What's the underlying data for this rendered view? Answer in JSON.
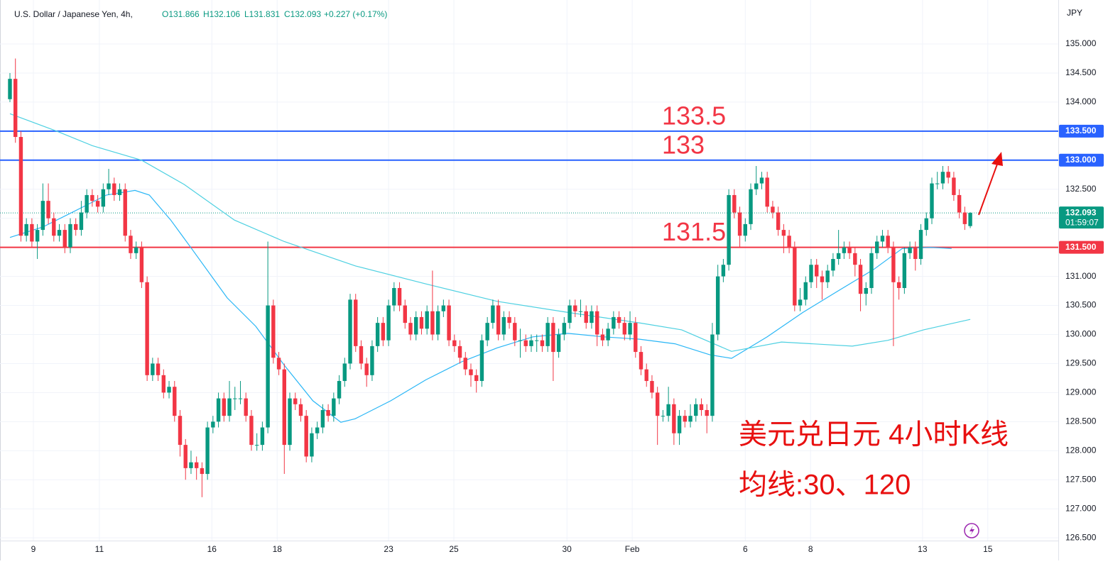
{
  "chart_data": {
    "type": "candlestick",
    "title": "U.S. Dollar / Japanese Yen, 4h,",
    "header": {
      "open": "O131.866",
      "high": "H132.106",
      "low": "L131.831",
      "close": "C132.093",
      "change": "+0.227 (+0.17%)"
    },
    "currency": "JPY",
    "up_color": "#089981",
    "down_color": "#f23645",
    "ylim": [
      126.453,
      135.757
    ],
    "yticks": [
      {
        "value": 126.5,
        "label": "126.500"
      },
      {
        "value": 127,
        "label": "127.000"
      },
      {
        "value": 127.5,
        "label": "127.500"
      },
      {
        "value": 128,
        "label": "128.000"
      },
      {
        "value": 128.5,
        "label": "128.500"
      },
      {
        "value": 129,
        "label": "129.000"
      },
      {
        "value": 129.5,
        "label": "129.500"
      },
      {
        "value": 130,
        "label": "130.000"
      },
      {
        "value": 130.5,
        "label": "130.500"
      },
      {
        "value": 131,
        "label": "131.000"
      },
      {
        "value": 131.5,
        "label": "131.500"
      },
      {
        "value": 132,
        "label": "132.000"
      },
      {
        "value": 132.5,
        "label": "132.500"
      },
      {
        "value": 133,
        "label": "133.000"
      },
      {
        "value": 133.5,
        "label": "133.500"
      },
      {
        "value": 134,
        "label": "134.000"
      },
      {
        "value": 134.5,
        "label": "134.500"
      },
      {
        "value": 135,
        "label": "135.000"
      }
    ],
    "xlim": [
      -1.81,
      191.04
    ],
    "xticks": [
      {
        "value": 4.27,
        "label": "9"
      },
      {
        "value": 16.3,
        "label": "11"
      },
      {
        "value": 36.8,
        "label": "16"
      },
      {
        "value": 48.7,
        "label": "18"
      },
      {
        "value": 69,
        "label": "23"
      },
      {
        "value": 80.9,
        "label": "25"
      },
      {
        "value": 101.5,
        "label": "30"
      },
      {
        "value": 113.4,
        "label": "Feb"
      },
      {
        "value": 134,
        "label": "6"
      },
      {
        "value": 145.9,
        "label": "8"
      },
      {
        "value": 166.3,
        "label": "13"
      },
      {
        "value": 178.2,
        "label": "15"
      }
    ],
    "grid": true,
    "ohlc": [
      [
        134.05,
        134.5,
        134.0,
        134.4
      ],
      [
        134.4,
        134.75,
        133.3,
        133.4
      ],
      [
        133.4,
        133.5,
        131.6,
        131.7
      ],
      [
        131.7,
        132.0,
        131.6,
        131.9
      ],
      [
        131.9,
        132.0,
        131.5,
        131.6
      ],
      [
        131.6,
        131.9,
        131.3,
        131.8
      ],
      [
        131.8,
        132.6,
        131.7,
        132.3
      ],
      [
        132.3,
        132.6,
        131.9,
        132.0
      ],
      [
        132.0,
        132.1,
        131.6,
        131.7
      ],
      [
        131.7,
        131.9,
        131.6,
        131.8
      ],
      [
        131.8,
        131.9,
        131.4,
        131.5
      ],
      [
        131.5,
        132.0,
        131.4,
        131.9
      ],
      [
        131.9,
        132.0,
        131.7,
        131.8
      ],
      [
        131.8,
        132.3,
        131.7,
        132.1
      ],
      [
        132.1,
        132.5,
        132.0,
        132.4
      ],
      [
        132.4,
        132.5,
        132.2,
        132.3
      ],
      [
        132.3,
        132.4,
        132.1,
        132.2
      ],
      [
        132.2,
        132.6,
        132.1,
        132.5
      ],
      [
        132.5,
        132.85,
        132.4,
        132.6
      ],
      [
        132.6,
        132.7,
        132.3,
        132.4
      ],
      [
        132.4,
        132.6,
        132.3,
        132.5
      ],
      [
        132.5,
        132.6,
        131.6,
        131.7
      ],
      [
        131.7,
        131.8,
        131.3,
        131.4
      ],
      [
        131.4,
        131.6,
        131.3,
        131.5
      ],
      [
        131.5,
        131.6,
        130.8,
        130.9
      ],
      [
        130.9,
        131.0,
        129.2,
        129.3
      ],
      [
        129.3,
        129.6,
        129.2,
        129.5
      ],
      [
        129.5,
        129.6,
        129.2,
        129.3
      ],
      [
        129.3,
        129.4,
        128.9,
        129.0
      ],
      [
        129.0,
        129.2,
        128.9,
        129.1
      ],
      [
        129.1,
        129.2,
        128.5,
        128.6
      ],
      [
        128.6,
        128.7,
        127.9,
        128.1
      ],
      [
        128.1,
        128.2,
        127.5,
        127.7
      ],
      [
        127.7,
        128.0,
        127.6,
        127.8
      ],
      [
        127.8,
        127.9,
        127.5,
        127.7
      ],
      [
        127.7,
        127.8,
        127.2,
        127.6
      ],
      [
        127.6,
        128.5,
        127.5,
        128.4
      ],
      [
        128.4,
        128.6,
        128.3,
        128.5
      ],
      [
        128.5,
        129.0,
        128.4,
        128.9
      ],
      [
        128.9,
        129.0,
        128.5,
        128.6
      ],
      [
        128.6,
        129.2,
        128.5,
        128.9
      ],
      [
        128.9,
        129.1,
        128.7,
        128.9
      ],
      [
        128.9,
        129.2,
        128.8,
        128.9
      ],
      [
        128.9,
        129.0,
        128.5,
        128.6
      ],
      [
        128.6,
        128.7,
        128.0,
        128.1
      ],
      [
        128.1,
        128.3,
        128.0,
        128.1
      ],
      [
        128.1,
        128.5,
        128.0,
        128.4
      ],
      [
        128.4,
        131.6,
        128.3,
        130.5
      ],
      [
        130.5,
        130.6,
        129.5,
        129.6
      ],
      [
        129.6,
        129.7,
        129.3,
        129.4
      ],
      [
        129.4,
        129.5,
        127.6,
        128.1
      ],
      [
        128.1,
        129.0,
        128.0,
        128.9
      ],
      [
        128.9,
        129.0,
        128.7,
        128.8
      ],
      [
        128.8,
        128.9,
        128.5,
        128.6
      ],
      [
        128.6,
        128.7,
        127.8,
        127.9
      ],
      [
        127.9,
        128.4,
        127.8,
        128.3
      ],
      [
        128.3,
        128.5,
        128.2,
        128.4
      ],
      [
        128.4,
        128.8,
        128.3,
        128.7
      ],
      [
        128.7,
        128.8,
        128.5,
        128.6
      ],
      [
        128.6,
        129.0,
        128.5,
        128.9
      ],
      [
        128.9,
        129.3,
        128.8,
        129.2
      ],
      [
        129.2,
        129.6,
        129.1,
        129.5
      ],
      [
        129.5,
        130.7,
        129.4,
        130.6
      ],
      [
        130.6,
        130.7,
        129.7,
        129.8
      ],
      [
        129.8,
        129.9,
        129.4,
        129.5
      ],
      [
        129.5,
        129.6,
        129.1,
        129.3
      ],
      [
        129.3,
        129.9,
        129.2,
        129.8
      ],
      [
        129.8,
        130.3,
        129.7,
        130.2
      ],
      [
        130.2,
        130.3,
        129.8,
        129.9
      ],
      [
        129.9,
        130.6,
        129.8,
        130.5
      ],
      [
        130.5,
        130.9,
        130.4,
        130.8
      ],
      [
        130.8,
        130.9,
        130.4,
        130.5
      ],
      [
        130.5,
        130.6,
        130.1,
        130.2
      ],
      [
        130.2,
        130.3,
        129.9,
        130.0
      ],
      [
        130.0,
        130.4,
        129.9,
        130.3
      ],
      [
        130.3,
        130.4,
        130.0,
        130.1
      ],
      [
        130.1,
        130.5,
        130.0,
        130.4
      ],
      [
        130.4,
        131.1,
        129.9,
        130.0
      ],
      [
        130.0,
        130.5,
        129.9,
        130.4
      ],
      [
        130.4,
        130.6,
        130.3,
        130.5
      ],
      [
        130.5,
        130.6,
        129.8,
        129.9
      ],
      [
        129.9,
        130.0,
        129.7,
        129.8
      ],
      [
        129.8,
        129.9,
        129.5,
        129.6
      ],
      [
        129.6,
        129.7,
        129.3,
        129.4
      ],
      [
        129.4,
        129.5,
        129.1,
        129.3
      ],
      [
        129.3,
        129.4,
        129.0,
        129.2
      ],
      [
        129.2,
        130.0,
        129.1,
        129.9
      ],
      [
        129.9,
        130.3,
        129.8,
        130.2
      ],
      [
        130.2,
        130.6,
        130.1,
        130.5
      ],
      [
        130.5,
        130.6,
        129.9,
        130.0
      ],
      [
        130.0,
        130.4,
        129.9,
        130.3
      ],
      [
        130.3,
        130.4,
        130.1,
        130.2
      ],
      [
        130.2,
        130.3,
        129.8,
        129.9
      ],
      [
        129.9,
        130.1,
        129.6,
        129.9
      ],
      [
        129.9,
        130.0,
        129.7,
        129.8
      ],
      [
        129.8,
        130.0,
        129.7,
        129.9
      ],
      [
        129.9,
        130.0,
        129.7,
        129.9
      ],
      [
        129.9,
        130.0,
        129.7,
        129.8
      ],
      [
        129.8,
        130.3,
        129.7,
        130.2
      ],
      [
        130.2,
        130.3,
        129.2,
        129.7
      ],
      [
        129.7,
        130.1,
        129.6,
        130.0
      ],
      [
        130.0,
        130.3,
        129.9,
        130.2
      ],
      [
        130.2,
        130.6,
        130.1,
        130.5
      ],
      [
        130.5,
        130.6,
        130.3,
        130.4
      ],
      [
        130.4,
        130.6,
        130.3,
        130.4
      ],
      [
        130.4,
        130.5,
        130.1,
        130.2
      ],
      [
        130.2,
        130.5,
        130.1,
        130.4
      ],
      [
        130.4,
        130.5,
        129.8,
        130.0
      ],
      [
        130.0,
        130.1,
        129.8,
        129.9
      ],
      [
        129.9,
        130.2,
        129.8,
        130.1
      ],
      [
        130.1,
        130.4,
        130.0,
        130.3
      ],
      [
        130.3,
        130.4,
        130.1,
        130.2
      ],
      [
        130.2,
        130.3,
        129.9,
        130.0
      ],
      [
        130.0,
        130.4,
        129.9,
        130.2
      ],
      [
        130.2,
        130.3,
        129.6,
        129.7
      ],
      [
        129.7,
        129.8,
        129.3,
        129.4
      ],
      [
        129.4,
        129.5,
        129.1,
        129.2
      ],
      [
        129.2,
        129.3,
        128.9,
        129.0
      ],
      [
        129.0,
        129.1,
        128.1,
        128.6
      ],
      [
        128.6,
        128.7,
        128.5,
        128.6
      ],
      [
        128.6,
        129.1,
        128.5,
        128.8
      ],
      [
        128.8,
        128.9,
        128.1,
        128.3
      ],
      [
        128.3,
        128.7,
        128.1,
        128.6
      ],
      [
        128.6,
        128.7,
        128.4,
        128.5
      ],
      [
        128.5,
        128.8,
        128.4,
        128.6
      ],
      [
        128.6,
        128.9,
        128.5,
        128.8
      ],
      [
        128.8,
        128.9,
        128.6,
        128.7
      ],
      [
        128.7,
        128.8,
        128.3,
        128.6
      ],
      [
        128.6,
        130.2,
        128.5,
        130.0
      ],
      [
        130.0,
        131.2,
        129.9,
        131.0
      ],
      [
        131.0,
        131.3,
        130.9,
        131.2
      ],
      [
        131.2,
        132.5,
        131.1,
        132.4
      ],
      [
        132.4,
        132.5,
        132.0,
        132.1
      ],
      [
        132.1,
        132.2,
        131.5,
        131.7
      ],
      [
        131.7,
        132.0,
        131.6,
        131.9
      ],
      [
        131.9,
        132.6,
        131.8,
        132.5
      ],
      [
        132.5,
        132.9,
        132.4,
        132.6
      ],
      [
        132.6,
        132.8,
        132.5,
        132.7
      ],
      [
        132.7,
        132.8,
        132.1,
        132.2
      ],
      [
        132.2,
        132.3,
        132.0,
        132.1
      ],
      [
        132.1,
        132.2,
        131.7,
        131.8
      ],
      [
        131.8,
        131.9,
        131.4,
        131.7
      ],
      [
        131.7,
        131.8,
        131.4,
        131.5
      ],
      [
        131.5,
        131.6,
        130.4,
        130.5
      ],
      [
        130.5,
        130.8,
        130.4,
        130.6
      ],
      [
        130.6,
        131.0,
        130.5,
        130.9
      ],
      [
        130.9,
        131.3,
        130.8,
        131.2
      ],
      [
        131.2,
        131.3,
        130.8,
        131.0
      ],
      [
        131.0,
        131.1,
        130.6,
        130.9
      ],
      [
        130.9,
        131.2,
        130.8,
        131.1
      ],
      [
        131.1,
        131.4,
        131.0,
        131.3
      ],
      [
        131.3,
        131.8,
        131.2,
        131.4
      ],
      [
        131.4,
        131.6,
        131.3,
        131.5
      ],
      [
        131.5,
        131.6,
        131.3,
        131.4
      ],
      [
        131.4,
        131.5,
        131.0,
        131.2
      ],
      [
        131.2,
        131.3,
        130.4,
        130.7
      ],
      [
        130.7,
        130.9,
        130.5,
        130.8
      ],
      [
        130.8,
        131.5,
        130.7,
        131.4
      ],
      [
        131.4,
        131.7,
        131.3,
        131.6
      ],
      [
        131.6,
        131.8,
        131.5,
        131.7
      ],
      [
        131.7,
        131.8,
        131.4,
        131.5
      ],
      [
        131.5,
        131.6,
        129.8,
        130.9
      ],
      [
        130.9,
        131.0,
        130.6,
        130.8
      ],
      [
        130.8,
        131.5,
        130.7,
        131.4
      ],
      [
        131.4,
        131.6,
        131.3,
        131.5
      ],
      [
        131.5,
        131.6,
        131.1,
        131.3
      ],
      [
        131.3,
        131.9,
        131.2,
        131.8
      ],
      [
        131.8,
        132.1,
        131.7,
        132.0
      ],
      [
        132.0,
        132.7,
        131.9,
        132.6
      ],
      [
        132.6,
        132.8,
        132.5,
        132.6
      ],
      [
        132.6,
        132.9,
        132.5,
        132.8
      ],
      [
        132.8,
        132.9,
        132.6,
        132.7
      ],
      [
        132.7,
        132.8,
        132.3,
        132.4
      ],
      [
        132.4,
        132.5,
        132.0,
        132.1
      ],
      [
        132.1,
        132.2,
        131.8,
        131.9
      ],
      [
        131.866,
        132.106,
        131.831,
        132.093
      ]
    ],
    "moving_averages": [
      {
        "color": "#29b6f6",
        "x": [
          0,
          6,
          11.1,
          17.6,
          22.8,
          25.4,
          29.3,
          33.1,
          39.6,
          44.8,
          50,
          55.2,
          60.3,
          62.9,
          69.4,
          75.8,
          82.3,
          88.8,
          95.3,
          101.7,
          108.2,
          114.7,
          121.2,
          127.6,
          131.5,
          138,
          144.5,
          150.9,
          157.4,
          162.6,
          167.7,
          171.6
        ],
        "values": [
          131.67,
          131.85,
          132.09,
          132.4,
          132.48,
          132.4,
          131.97,
          131.48,
          130.63,
          130.14,
          129.47,
          128.86,
          128.49,
          128.55,
          128.86,
          129.22,
          129.53,
          129.77,
          129.96,
          130.02,
          129.96,
          129.92,
          129.84,
          129.65,
          129.59,
          129.96,
          130.38,
          130.75,
          131.12,
          131.48,
          131.5,
          131.48
        ]
      },
      {
        "color": "#4dd0e1",
        "x": [
          0,
          8.5,
          15,
          24,
          31.8,
          40.9,
          50,
          63,
          75.8,
          88.8,
          101.7,
          114.7,
          122.4,
          131.5,
          140.6,
          153.5,
          160,
          166.5,
          175
        ],
        "values": [
          133.8,
          133.5,
          133.25,
          133.0,
          132.58,
          131.97,
          131.6,
          131.18,
          130.87,
          130.57,
          130.38,
          130.2,
          130.08,
          129.71,
          129.87,
          129.8,
          129.9,
          130.08,
          130.26
        ]
      }
    ],
    "levels": [
      {
        "value": 133.5,
        "label": "133.500",
        "color": "#2962ff",
        "annotation": "133.5"
      },
      {
        "value": 133,
        "label": "133.000",
        "color": "#2962ff",
        "annotation": "133"
      },
      {
        "value": 131.5,
        "label": "131.500",
        "color": "#f23645",
        "annotation": "131.5"
      }
    ],
    "last_price": 132.093,
    "countdown": "01:59:07",
    "notes": [
      "美元兑日元 4小时K线",
      "均线:30、120"
    ]
  }
}
